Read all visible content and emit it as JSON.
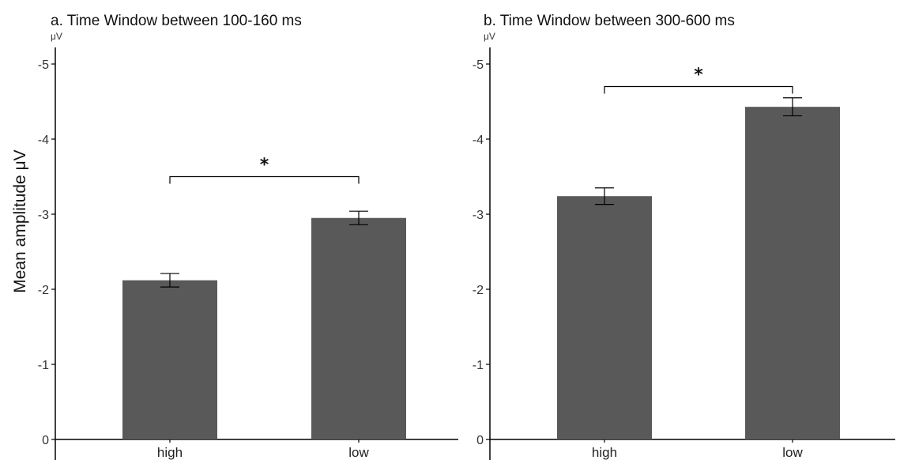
{
  "ylabel": "Mean amplitude μV",
  "colors": {
    "bar": "#595959",
    "axis": "#000000",
    "errorbar": "#000000"
  },
  "chart_data": [
    {
      "type": "bar",
      "title": "a. Time Window between 100-160 ms",
      "unit_label": "μV",
      "ylabel": "Mean amplitude μV",
      "categories": [
        "high",
        "low"
      ],
      "values": [
        -2.12,
        -2.95
      ],
      "error": [
        0.09,
        0.09
      ],
      "ylim": [
        0,
        -5.2
      ],
      "y_inverted": true,
      "yticks": [
        "0",
        "-1",
        "-2",
        "-3",
        "-4",
        "-5"
      ],
      "significance": {
        "between": [
          "high",
          "low"
        ],
        "label": "*",
        "level": -3.5
      }
    },
    {
      "type": "bar",
      "title": "b. Time Window between 300-600 ms",
      "unit_label": "μV",
      "categories": [
        "high",
        "low"
      ],
      "values": [
        -3.24,
        -4.43
      ],
      "error": [
        0.11,
        0.12
      ],
      "ylim": [
        0,
        -5.2
      ],
      "y_inverted": true,
      "yticks": [
        "0",
        "-1",
        "-2",
        "-3",
        "-4",
        "-5"
      ],
      "significance": {
        "between": [
          "high",
          "low"
        ],
        "label": "*",
        "level": -4.7
      }
    }
  ]
}
